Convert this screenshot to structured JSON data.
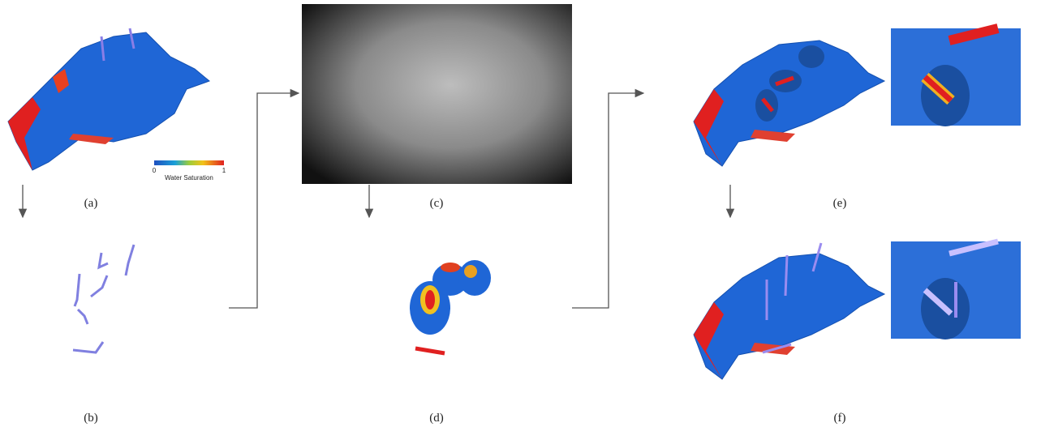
{
  "panels": [
    {
      "label": "(a)"
    },
    {
      "label": "(b)"
    },
    {
      "label": "(c)"
    },
    {
      "label": "(d)"
    },
    {
      "label": "(e)"
    },
    {
      "label": "(f)"
    }
  ],
  "colorbar": {
    "title": "Water Saturation",
    "min_label": "0",
    "max_label": "1"
  }
}
